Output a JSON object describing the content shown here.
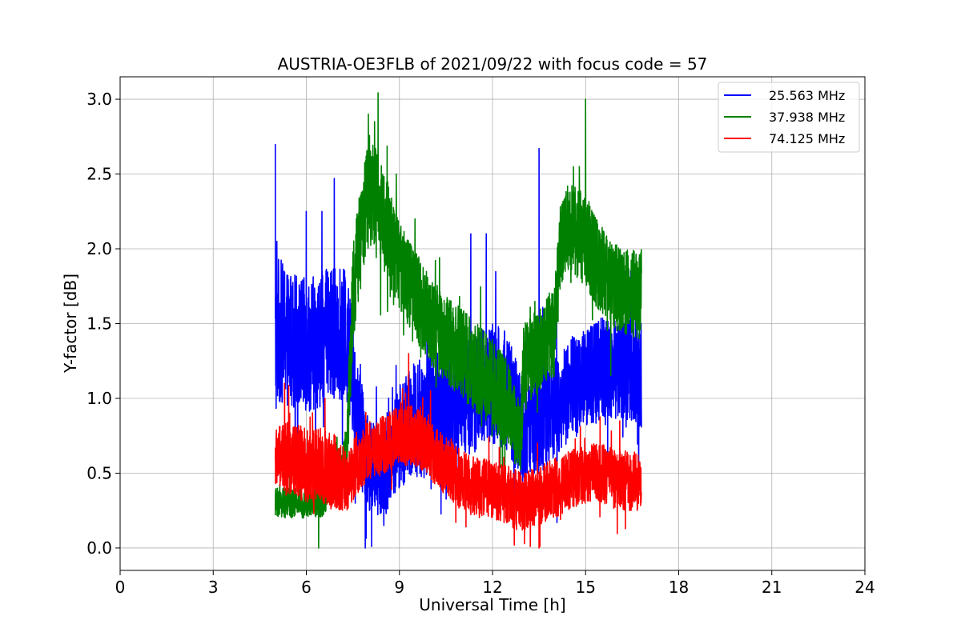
{
  "chart_data": {
    "type": "line",
    "title": "AUSTRIA-OE3FLB of 2021/09/22 with focus code = 57",
    "xlabel": "Universal Time [h]",
    "ylabel": "Y-factor [dB]",
    "xlim": [
      0,
      24
    ],
    "ylim": [
      -0.15,
      3.15
    ],
    "xticks": [
      0,
      3,
      6,
      9,
      12,
      15,
      18,
      21,
      24
    ],
    "yticks": [
      0.0,
      0.5,
      1.0,
      1.5,
      2.0,
      2.5,
      3.0
    ],
    "xtick_labels": [
      "0",
      "3",
      "6",
      "9",
      "12",
      "15",
      "18",
      "21",
      "24"
    ],
    "ytick_labels": [
      "0.0",
      "0.5",
      "1.0",
      "1.5",
      "2.0",
      "2.5",
      "3.0"
    ],
    "grid": true,
    "legend_position": "top-right",
    "series": [
      {
        "name": "25.563 MHz",
        "color": "#0000ff",
        "x": [
          5.0,
          5.1,
          5.5,
          6.0,
          6.5,
          7.0,
          7.3,
          7.6,
          8.0,
          8.5,
          9.0,
          9.5,
          10.0,
          10.5,
          11.0,
          11.5,
          12.0,
          12.5,
          13.0,
          13.5,
          14.0,
          14.5,
          15.0,
          15.5,
          16.0,
          16.5,
          16.8
        ],
        "y": [
          1.3,
          1.45,
          1.4,
          1.35,
          1.4,
          1.45,
          1.4,
          1.0,
          0.55,
          0.5,
          0.75,
          0.85,
          0.9,
          0.95,
          1.0,
          1.05,
          1.1,
          1.05,
          0.75,
          0.85,
          0.95,
          1.05,
          1.15,
          1.2,
          1.2,
          1.2,
          1.15
        ],
        "spread": [
          0.45,
          0.5,
          0.45,
          0.45,
          0.45,
          0.45,
          0.45,
          0.4,
          0.3,
          0.3,
          0.35,
          0.4,
          0.4,
          0.4,
          0.4,
          0.4,
          0.4,
          0.4,
          0.35,
          0.35,
          0.35,
          0.35,
          0.35,
          0.35,
          0.35,
          0.35,
          0.35
        ],
        "spikes": [
          [
            5.0,
            2.7
          ],
          [
            5.05,
            2.05
          ],
          [
            6.0,
            2.25
          ],
          [
            6.5,
            2.25
          ],
          [
            6.9,
            2.47
          ],
          [
            11.3,
            2.1
          ],
          [
            11.8,
            2.1
          ],
          [
            13.5,
            2.67
          ],
          [
            7.9,
            0.0
          ],
          [
            6.3,
            0.3
          ],
          [
            8.5,
            0.15
          ]
        ]
      },
      {
        "name": "37.938 MHz",
        "color": "#008000",
        "x": [
          5.0,
          5.5,
          6.0,
          6.5,
          7.0,
          7.3,
          7.5,
          7.9,
          8.0,
          8.5,
          9.0,
          9.5,
          10.0,
          10.5,
          11.0,
          11.5,
          12.0,
          12.5,
          12.9,
          13.0,
          13.5,
          14.0,
          14.2,
          14.5,
          15.0,
          15.5,
          16.0,
          16.5,
          16.8
        ],
        "y": [
          0.3,
          0.3,
          0.3,
          0.3,
          0.5,
          0.6,
          1.7,
          2.3,
          2.4,
          2.2,
          1.9,
          1.7,
          1.5,
          1.4,
          1.3,
          1.2,
          1.1,
          0.95,
          0.7,
          1.2,
          1.35,
          1.45,
          2.05,
          2.15,
          2.05,
          1.85,
          1.75,
          1.7,
          1.7
        ],
        "spread": [
          0.1,
          0.1,
          0.1,
          0.1,
          0.15,
          0.2,
          0.35,
          0.35,
          0.4,
          0.35,
          0.3,
          0.3,
          0.3,
          0.3,
          0.3,
          0.3,
          0.3,
          0.3,
          0.25,
          0.3,
          0.3,
          0.3,
          0.3,
          0.3,
          0.3,
          0.3,
          0.3,
          0.3,
          0.3
        ],
        "spikes": [
          [
            8.0,
            2.9
          ],
          [
            8.2,
            2.85
          ],
          [
            8.9,
            2.5
          ],
          [
            15.0,
            3.0
          ],
          [
            14.8,
            2.55
          ],
          [
            6.4,
            0.0
          ],
          [
            9.5,
            2.2
          ]
        ]
      },
      {
        "name": "74.125 MHz",
        "color": "#ff0000",
        "x": [
          5.0,
          5.5,
          6.0,
          6.5,
          7.0,
          7.3,
          7.6,
          8.0,
          8.5,
          9.0,
          9.5,
          10.0,
          10.5,
          11.0,
          11.5,
          12.0,
          12.5,
          13.0,
          13.5,
          14.0,
          14.5,
          15.0,
          15.5,
          16.0,
          16.5,
          16.8
        ],
        "y": [
          0.6,
          0.6,
          0.55,
          0.55,
          0.5,
          0.45,
          0.55,
          0.65,
          0.7,
          0.75,
          0.75,
          0.65,
          0.55,
          0.45,
          0.4,
          0.4,
          0.35,
          0.3,
          0.35,
          0.4,
          0.45,
          0.5,
          0.5,
          0.45,
          0.45,
          0.45
        ],
        "spread": [
          0.2,
          0.25,
          0.25,
          0.25,
          0.25,
          0.2,
          0.2,
          0.2,
          0.2,
          0.2,
          0.2,
          0.2,
          0.2,
          0.2,
          0.2,
          0.2,
          0.2,
          0.2,
          0.2,
          0.2,
          0.2,
          0.2,
          0.2,
          0.2,
          0.2,
          0.2
        ],
        "spikes": [
          [
            9.3,
            1.3
          ],
          [
            10.0,
            1.05
          ],
          [
            5.3,
            1.1
          ],
          [
            6.6,
            1.0
          ],
          [
            12.7,
            0.02
          ],
          [
            13.5,
            0.0
          ],
          [
            16.1,
            0.85
          ]
        ]
      }
    ]
  }
}
